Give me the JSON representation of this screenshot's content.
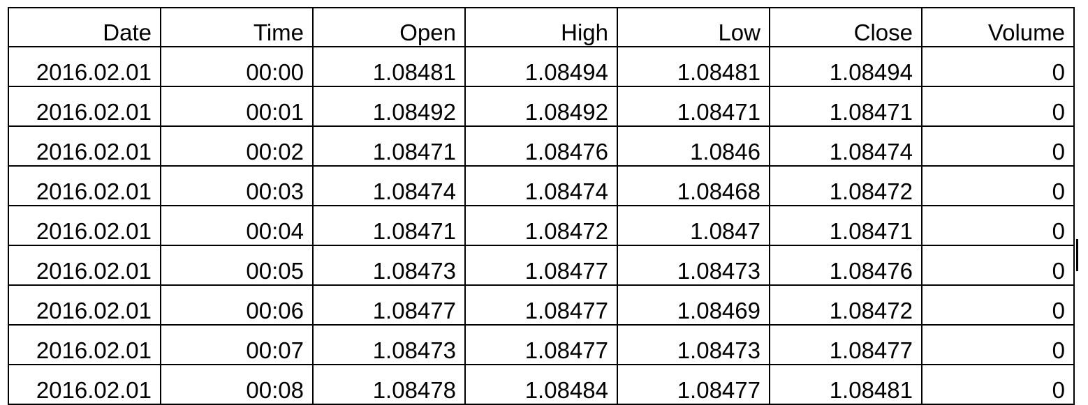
{
  "table": {
    "columns": [
      "Date",
      "Time",
      "Open",
      "High",
      "Low",
      "Close",
      "Volume"
    ],
    "rows": [
      [
        "2016.02.01",
        "00:00",
        "1.08481",
        "1.08494",
        "1.08481",
        "1.08494",
        "0"
      ],
      [
        "2016.02.01",
        "00:01",
        "1.08492",
        "1.08492",
        "1.08471",
        "1.08471",
        "0"
      ],
      [
        "2016.02.01",
        "00:02",
        "1.08471",
        "1.08476",
        "1.0846",
        "1.08474",
        "0"
      ],
      [
        "2016.02.01",
        "00:03",
        "1.08474",
        "1.08474",
        "1.08468",
        "1.08472",
        "0"
      ],
      [
        "2016.02.01",
        "00:04",
        "1.08471",
        "1.08472",
        "1.0847",
        "1.08471",
        "0"
      ],
      [
        "2016.02.01",
        "00:05",
        "1.08473",
        "1.08477",
        "1.08473",
        "1.08476",
        "0"
      ],
      [
        "2016.02.01",
        "00:06",
        "1.08477",
        "1.08477",
        "1.08469",
        "1.08472",
        "0"
      ],
      [
        "2016.02.01",
        "00:07",
        "1.08473",
        "1.08477",
        "1.08473",
        "1.08477",
        "0"
      ],
      [
        "2016.02.01",
        "00:08",
        "1.08478",
        "1.08484",
        "1.08477",
        "1.08481",
        "0"
      ]
    ]
  }
}
